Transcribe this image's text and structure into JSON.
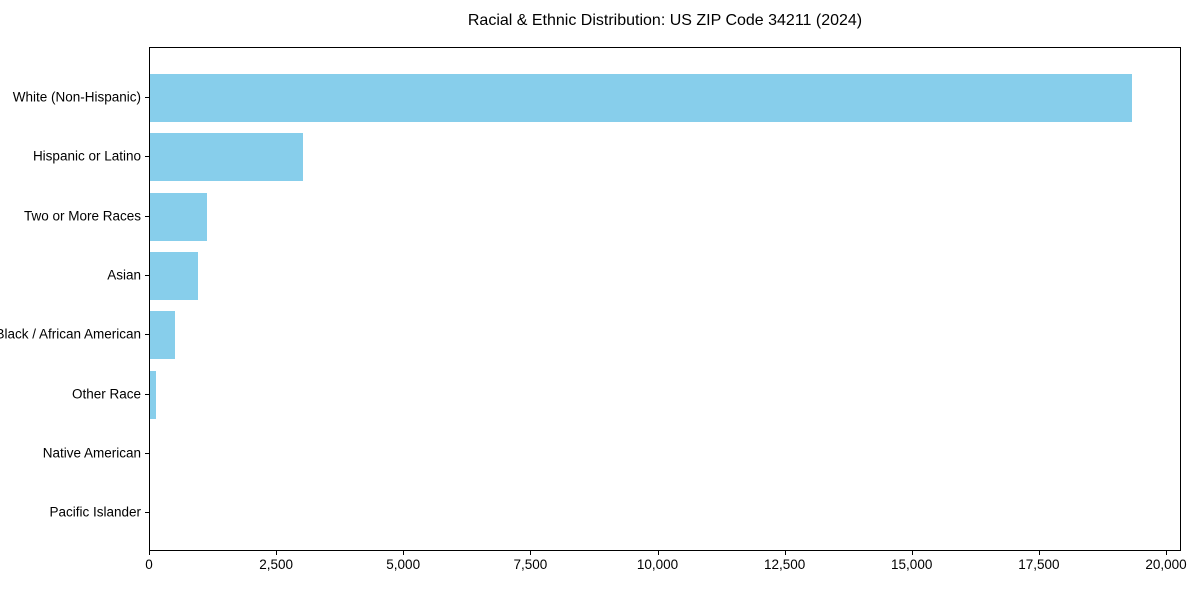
{
  "chart_data": {
    "type": "bar",
    "orientation": "horizontal",
    "title": "Racial & Ethnic Distribution: US ZIP Code 34211 (2024)",
    "categories": [
      "White (Non-Hispanic)",
      "Hispanic or Latino",
      "Two or More Races",
      "Asian",
      "Black / African American",
      "Other Race",
      "Native American",
      "Pacific Islander"
    ],
    "values": [
      19310,
      3000,
      1120,
      940,
      500,
      110,
      0,
      0
    ],
    "xlabel": "",
    "ylabel": "",
    "xlim": [
      0,
      20295
    ],
    "x_ticks": [
      0,
      2500,
      5000,
      7500,
      10000,
      12500,
      15000,
      17500,
      20000
    ],
    "x_tick_labels": [
      "0",
      "2,500",
      "5,000",
      "7,500",
      "10,000",
      "12,500",
      "15,000",
      "17,500",
      "20,000"
    ],
    "bar_color": "#87CEEB",
    "grid": false,
    "legend": null,
    "plot_background": "#ffffff",
    "spine_color": "#000000"
  }
}
